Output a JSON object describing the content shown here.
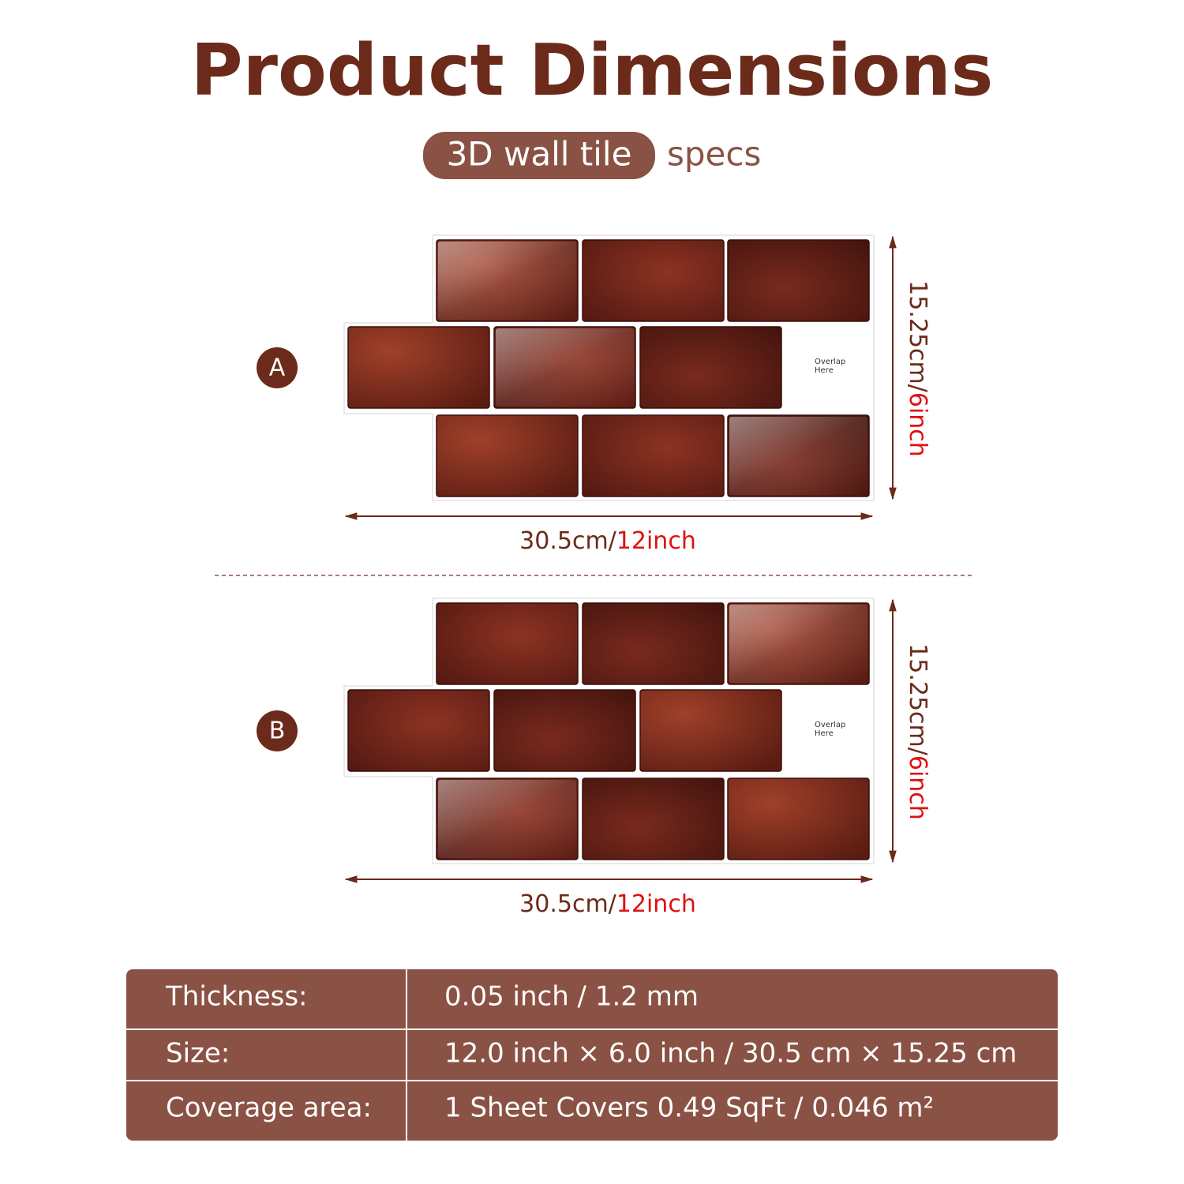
{
  "header": {
    "title": "Product Dimensions",
    "badge": "3D wall tile",
    "subtitle": "specs"
  },
  "variants": [
    {
      "label": "A",
      "overlap": [
        "Overlap",
        "Here"
      ],
      "height": {
        "metric": "15.25cm/",
        "imperial": "6inch"
      },
      "width": {
        "metric": "30.5cm/",
        "imperial": "12inch"
      }
    },
    {
      "label": "B",
      "overlap": [
        "Overlap",
        "Here"
      ],
      "height": {
        "metric": "15.25cm/",
        "imperial": "6inch"
      },
      "width": {
        "metric": "30.5cm/",
        "imperial": "12inch"
      }
    }
  ],
  "table": {
    "rows": [
      [
        "Thickness:",
        "0.05 inch / 1.2 mm"
      ],
      [
        "Size:",
        "12.0 inch × 6.0 inch / 30.5 cm × 15.25 cm"
      ],
      [
        "Coverage area:",
        "1 Sheet Covers 0.49 SqFt / 0.046 m²"
      ]
    ]
  }
}
